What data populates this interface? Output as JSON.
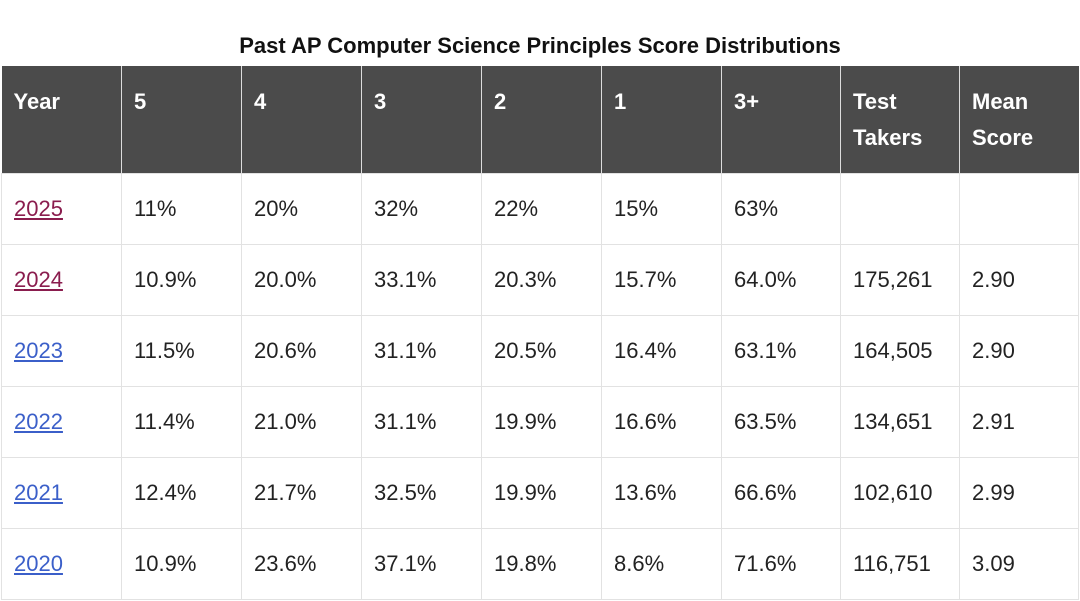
{
  "chart_data": {
    "type": "table",
    "title": "Past AP Computer Science Principles Score Distributions",
    "columns": [
      "Year",
      "5",
      "4",
      "3",
      "2",
      "1",
      "3+",
      "Test Takers",
      "Mean Score"
    ],
    "rows": [
      {
        "year": "2025",
        "link_color": "#8a1d4e",
        "values": [
          "11%",
          "20%",
          "32%",
          "22%",
          "15%",
          "63%",
          "",
          ""
        ]
      },
      {
        "year": "2024",
        "link_color": "#8a1d4e",
        "values": [
          "10.9%",
          "20.0%",
          "33.1%",
          "20.3%",
          "15.7%",
          "64.0%",
          "175,261",
          "2.90"
        ]
      },
      {
        "year": "2023",
        "link_color": "#3b5fc9",
        "values": [
          "11.5%",
          "20.6%",
          "31.1%",
          "20.5%",
          "16.4%",
          "63.1%",
          "164,505",
          "2.90"
        ]
      },
      {
        "year": "2022",
        "link_color": "#3b5fc9",
        "values": [
          "11.4%",
          "21.0%",
          "31.1%",
          "19.9%",
          "16.6%",
          "63.5%",
          "134,651",
          "2.91"
        ]
      },
      {
        "year": "2021",
        "link_color": "#3b5fc9",
        "values": [
          "12.4%",
          "21.7%",
          "32.5%",
          "19.9%",
          "13.6%",
          "66.6%",
          "102,610",
          "2.99"
        ]
      },
      {
        "year": "2020",
        "link_color": "#3b5fc9",
        "values": [
          "10.9%",
          "23.6%",
          "37.1%",
          "19.8%",
          "8.6%",
          "71.6%",
          "116,751",
          "3.09"
        ]
      }
    ]
  },
  "colors": {
    "header_bg": "#4b4b4b",
    "visited_link": "#8a1d4e",
    "link": "#3b5fc9"
  }
}
